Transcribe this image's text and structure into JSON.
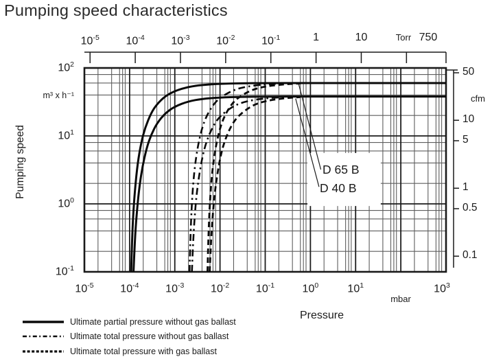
{
  "page": {
    "title": "Pumping speed characteristics"
  },
  "colors": {
    "ink": "#1a1a1a",
    "grid_major": "#1c1c1c",
    "grid_minor": "#5d5d5d",
    "curve": "#0a0a0a",
    "background": "#ffffff"
  },
  "chart_data": {
    "type": "line",
    "title": "Pumping speed characteristics",
    "xlabel": "Pressure",
    "ylabel": "Pumping speed",
    "grid": true,
    "x_axis_bottom": {
      "unit": "mbar",
      "scale": "log",
      "range_mbar": [
        1e-05,
        1000
      ],
      "ticks": [
        {
          "v": 1e-05,
          "t": "10^-5"
        },
        {
          "v": 0.0001,
          "t": "10^-4"
        },
        {
          "v": 0.001,
          "t": "10^-3"
        },
        {
          "v": 0.01,
          "t": "10^-2"
        },
        {
          "v": 0.1,
          "t": "10^-1"
        },
        {
          "v": 1,
          "t": "10^0"
        },
        {
          "v": 10,
          "t": "10^1"
        },
        {
          "v": 1000,
          "t": "10^3",
          "dx": -6
        }
      ]
    },
    "x_axis_top": {
      "unit": "Torr",
      "scale": "log",
      "mbar_per_torr": 1.3332,
      "range_torr": [
        1e-05,
        750
      ],
      "ticks": [
        {
          "v": 1e-05,
          "t": "10^-5"
        },
        {
          "v": 0.0001,
          "t": "10^-4"
        },
        {
          "v": 0.001,
          "t": "10^-3"
        },
        {
          "v": 0.01,
          "t": "10^-2"
        },
        {
          "v": 0.1,
          "t": "10^-1"
        },
        {
          "v": 1,
          "t": "1"
        },
        {
          "v": 10,
          "t": "10"
        },
        {
          "v": 100,
          "t": ""
        },
        {
          "v": 750,
          "t": "750",
          "dx": -26
        }
      ]
    },
    "y_axis_left": {
      "unit": "m³ x h⁻¹",
      "scale": "log",
      "range_m3h": [
        0.1,
        100
      ],
      "ticks": [
        {
          "v": 100,
          "t": "10^2"
        },
        {
          "v": 10,
          "t": "10^1"
        },
        {
          "v": 1,
          "t": "10^0"
        },
        {
          "v": 0.1,
          "t": "10^-1"
        }
      ]
    },
    "y_axis_right": {
      "unit": "cfm",
      "m3h_per_cfm": 1.699,
      "ticks": [
        {
          "v": 50,
          "t": "50"
        },
        {
          "v": 10,
          "t": "10"
        },
        {
          "v": 5,
          "t": "5"
        },
        {
          "v": 1,
          "t": "1"
        },
        {
          "v": 0.5,
          "t": "0.5"
        },
        {
          "v": 0.1,
          "t": "0.1"
        }
      ]
    },
    "grid_minors": {
      "minor_x": [
        2,
        4,
        6,
        7,
        8
      ],
      "minor_y": [
        2,
        4,
        6,
        8
      ]
    },
    "series": [
      {
        "pump": "D 65 B",
        "quantity": "Ultimate partial pressure without gas ballast",
        "style": "solid",
        "plateau_m3h": 60,
        "ultimate_pressure_mbar": 0.0001,
        "points": [
          [
            0.0001085,
            0.1
          ],
          [
            0.00011,
            0.15
          ],
          [
            0.000115,
            0.37
          ],
          [
            0.00012,
            0.68
          ],
          [
            0.00013,
            1.5
          ],
          [
            0.00015,
            3.9
          ],
          [
            0.00018,
            7.9
          ],
          [
            0.00022,
            13.2
          ],
          [
            0.0003,
            21.8
          ],
          [
            0.0004,
            29.2
          ],
          [
            0.0006,
            38
          ],
          [
            0.001,
            46
          ],
          [
            0.002,
            52.8
          ],
          [
            0.004,
            56.3
          ],
          [
            0.01,
            58.5
          ],
          [
            0.03,
            59.5
          ],
          [
            0.1,
            59.9
          ],
          [
            1,
            60
          ],
          [
            1000,
            60
          ]
        ]
      },
      {
        "pump": "D 40 B",
        "quantity": "Ultimate partial pressure without gas ballast",
        "style": "solid",
        "plateau_m3h": 38,
        "ultimate_pressure_mbar": 0.000105,
        "points": [
          [
            0.000122,
            0.1
          ],
          [
            0.00013,
            0.27
          ],
          [
            0.00014,
            0.59
          ],
          [
            0.00016,
            1.55
          ],
          [
            0.00019,
            3.4
          ],
          [
            0.00024,
            6.8
          ],
          [
            0.0003,
            10.4
          ],
          [
            0.0004,
            15.2
          ],
          [
            0.0006,
            21.3
          ],
          [
            0.001,
            27.2
          ],
          [
            0.002,
            32.3
          ],
          [
            0.004,
            35.1
          ],
          [
            0.01,
            36.8
          ],
          [
            0.03,
            37.6
          ],
          [
            0.1,
            37.9
          ],
          [
            1,
            38
          ],
          [
            1000,
            38
          ]
        ]
      },
      {
        "pump": "D 65 B",
        "quantity": "Ultimate total pressure without gas ballast",
        "style": "dashdot",
        "plateau_m3h": 60,
        "ultimate_pressure_mbar": 0.002,
        "points": [
          [
            0.00212,
            0.1
          ],
          [
            0.0022,
            0.3
          ],
          [
            0.0024,
            1.16
          ],
          [
            0.0027,
            3.1
          ],
          [
            0.0032,
            6.9
          ],
          [
            0.004,
            13.1
          ],
          [
            0.005,
            19.5
          ],
          [
            0.007,
            28.6
          ],
          [
            0.01,
            36.7
          ],
          [
            0.02,
            47.6
          ],
          [
            0.04,
            53.6
          ],
          [
            0.1,
            57.4
          ],
          [
            0.25,
            59.2
          ]
        ]
      },
      {
        "pump": "D 40 B",
        "quantity": "Ultimate total pressure without gas ballast",
        "style": "dashdot",
        "plateau_m3h": 38,
        "ultimate_pressure_mbar": 0.0021,
        "points": [
          [
            0.00239,
            0.1
          ],
          [
            0.0025,
            0.23
          ],
          [
            0.0028,
            0.79
          ],
          [
            0.0032,
            1.9
          ],
          [
            0.004,
            4.7
          ],
          [
            0.005,
            8.3
          ],
          [
            0.007,
            14
          ],
          [
            0.01,
            19.6
          ],
          [
            0.02,
            27.9
          ],
          [
            0.04,
            32.7
          ],
          [
            0.1,
            35.8
          ],
          [
            0.25,
            37.2
          ]
        ]
      },
      {
        "pump": "D 65 B",
        "quantity": "Ultimate total pressure with gas ballast",
        "style": "dashed",
        "plateau_m3h": 60,
        "ultimate_pressure_mbar": 0.005,
        "points": [
          [
            0.00529,
            0.1
          ],
          [
            0.0055,
            0.3
          ],
          [
            0.006,
            1.16
          ],
          [
            0.00675,
            3.1
          ],
          [
            0.008,
            6.9
          ],
          [
            0.01,
            13.1
          ],
          [
            0.0125,
            19.5
          ],
          [
            0.0175,
            28.6
          ],
          [
            0.025,
            36.7
          ],
          [
            0.05,
            47.6
          ],
          [
            0.1,
            53.6
          ],
          [
            0.25,
            57.4
          ],
          [
            0.6,
            59.2
          ]
        ]
      },
      {
        "pump": "D 40 B",
        "quantity": "Ultimate total pressure with gas ballast",
        "style": "dashed",
        "plateau_m3h": 38,
        "ultimate_pressure_mbar": 0.0052,
        "points": [
          [
            0.0059,
            0.1
          ],
          [
            0.0062,
            0.23
          ],
          [
            0.007,
            0.79
          ],
          [
            0.008,
            1.9
          ],
          [
            0.01,
            4.7
          ],
          [
            0.0125,
            8.3
          ],
          [
            0.0175,
            14
          ],
          [
            0.025,
            19.6
          ],
          [
            0.05,
            27.9
          ],
          [
            0.1,
            32.7
          ],
          [
            0.25,
            35.8
          ],
          [
            0.6,
            37.3
          ]
        ]
      }
    ],
    "annotations": [
      {
        "label": "D 65 B",
        "leader_from": [
          0.55,
          58
        ],
        "leader_to": [
          1.7,
          3.2
        ]
      },
      {
        "label": "D 40 B",
        "leader_from": [
          0.47,
          35.5
        ],
        "leader_to": [
          1.55,
          1.78
        ]
      }
    ],
    "annotation_box": {
      "p": [
        0.86,
        36
      ],
      "v": [
        0.93,
        5.6
      ]
    }
  },
  "legend": {
    "items": [
      {
        "style": "solid",
        "label": "Ultimate partial pressure without gas ballast"
      },
      {
        "style": "dashdot",
        "label": "Ultimate total pressure without gas ballast"
      },
      {
        "style": "dashed",
        "label": "Ultimate total pressure with gas ballast"
      }
    ]
  }
}
